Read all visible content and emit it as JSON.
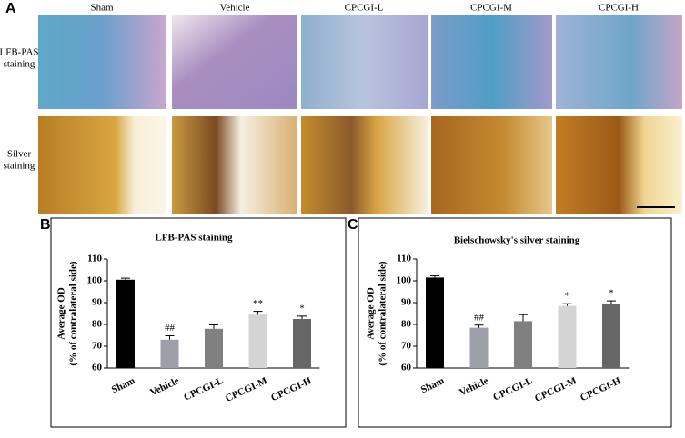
{
  "figure": {
    "panel_labels": [
      "A",
      "B",
      "C"
    ],
    "column_headers": [
      "Sham",
      "Vehicle",
      "CPCGI-L",
      "CPCGI-M",
      "CPCGI-H"
    ],
    "row_labels": [
      [
        "LFB-PAS",
        "staining"
      ],
      [
        "Silver",
        "staining"
      ]
    ]
  },
  "chart_data": [
    {
      "type": "bar",
      "title": "LFB-PAS staining",
      "ylabel": [
        "Average OD",
        "(% of contralateral side)"
      ],
      "categories": [
        "Sham",
        "Vehicle",
        "CPCGI-L",
        "CPCGI-M",
        "CPCGI-H"
      ],
      "values": [
        100.5,
        73,
        78,
        84.5,
        82.5
      ],
      "errors": [
        0.7,
        1.8,
        1.8,
        1.5,
        1.3
      ],
      "annotations": [
        null,
        "##",
        null,
        "**",
        "*"
      ],
      "colors": [
        "#000000",
        "#9c9ea8",
        "#808080",
        "#d4d4d4",
        "#666666"
      ],
      "ylim": [
        60,
        110
      ],
      "yticks": [
        60,
        70,
        80,
        90,
        100,
        110
      ]
    },
    {
      "type": "bar",
      "title": "Bielschowsky's silver staining",
      "ylabel": [
        "Average OD",
        "(% of contralateral side)"
      ],
      "categories": [
        "Sham",
        "Vehicle",
        "CPCGI-L",
        "CPCGI-M",
        "CPCGI-H"
      ],
      "values": [
        101.5,
        78.5,
        81.5,
        88.5,
        89.3
      ],
      "errors": [
        0.8,
        1.2,
        3,
        1,
        1.5
      ],
      "annotations": [
        null,
        "##",
        null,
        "*",
        "*"
      ],
      "colors": [
        "#000000",
        "#9c9ea8",
        "#808080",
        "#d4d4d4",
        "#666666"
      ],
      "ylim": [
        60,
        110
      ],
      "yticks": [
        60,
        70,
        80,
        90,
        100,
        110
      ]
    }
  ]
}
